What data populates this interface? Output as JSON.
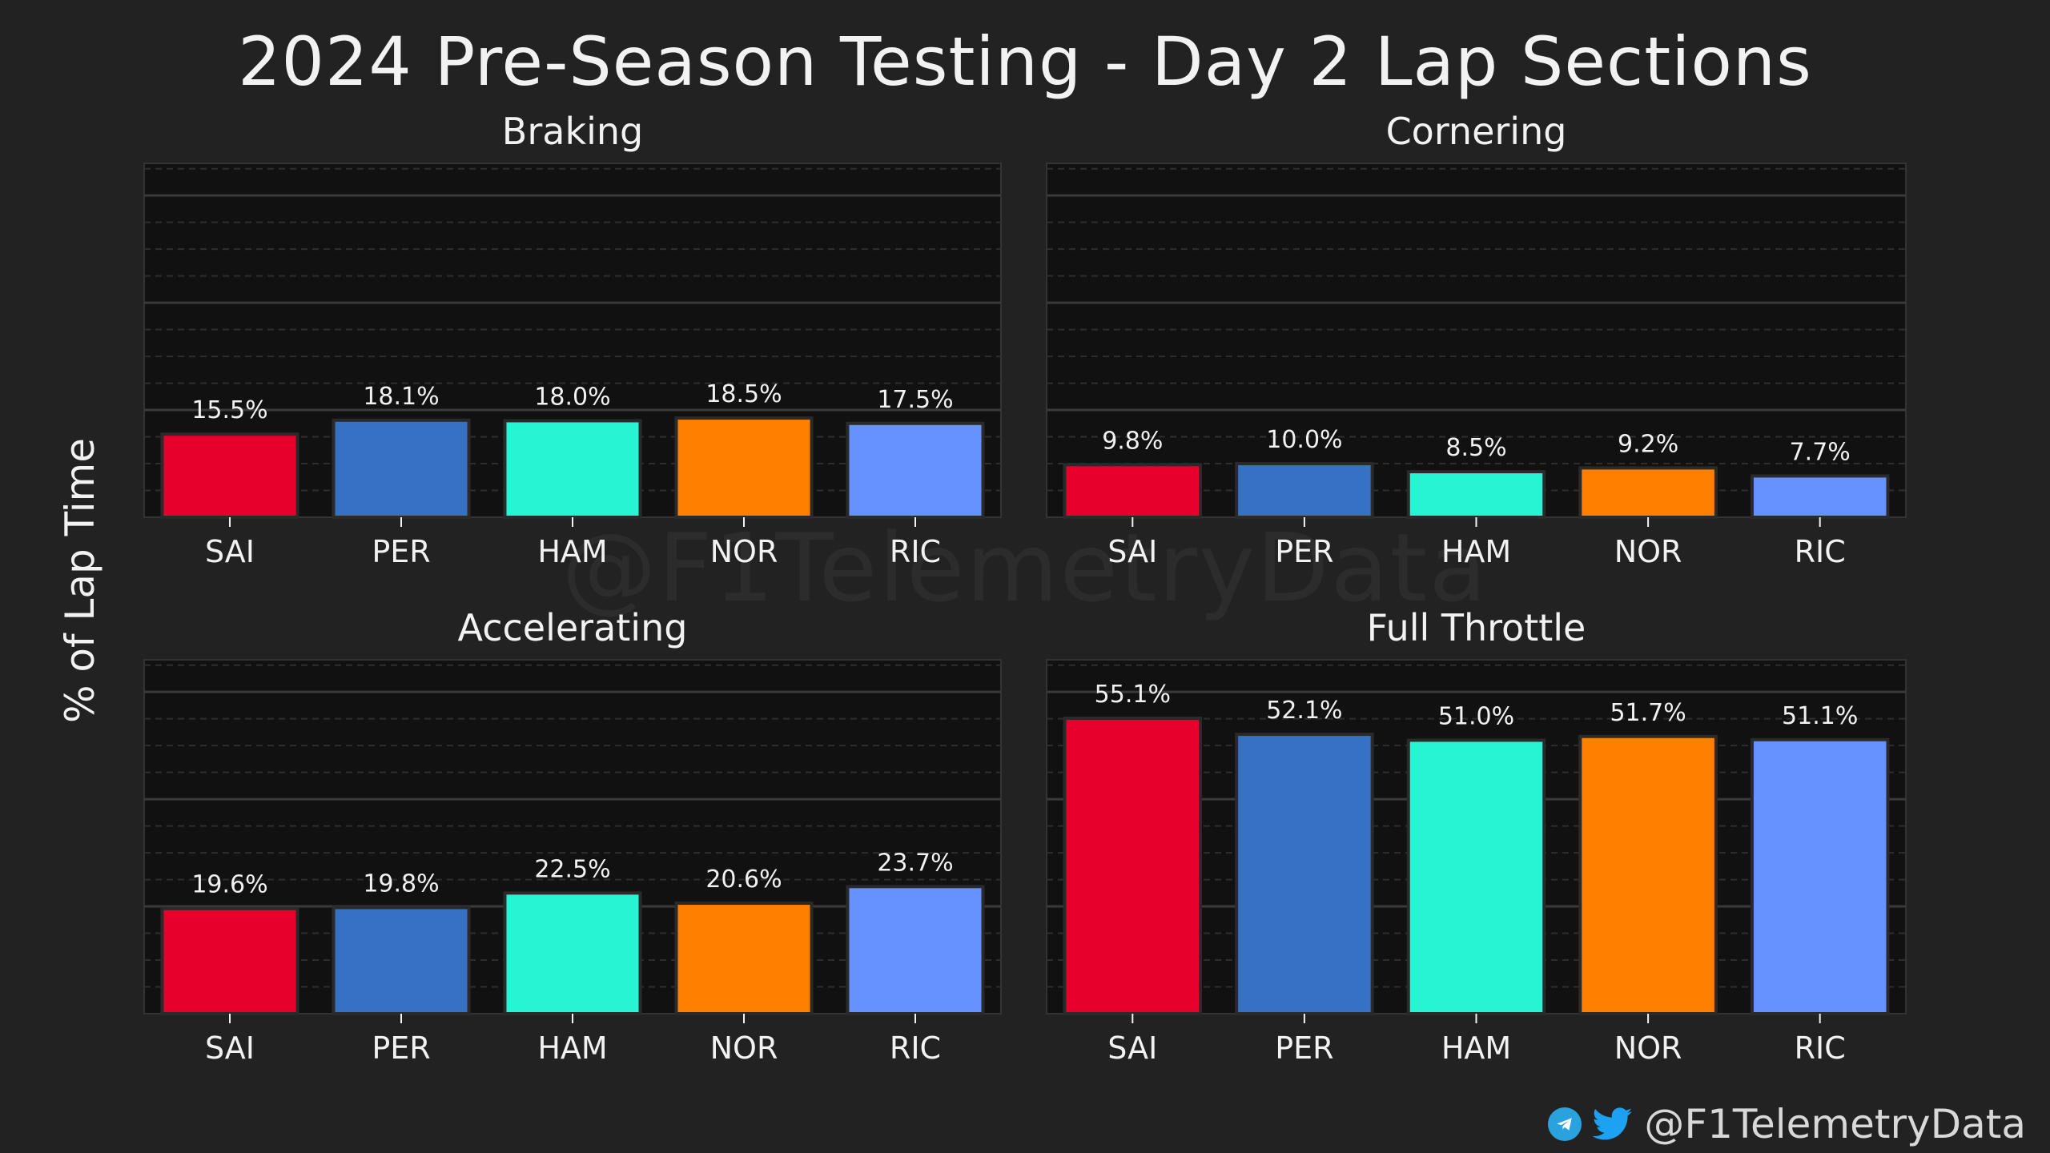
{
  "title": "2024 Pre-Season Testing - Day 2 Lap Sections",
  "ylabel": "% of Lap Time",
  "watermark": "@F1TelemetryData",
  "footer": {
    "handle": "@F1TelemetryData",
    "icons": [
      "telegram-icon",
      "twitter-icon"
    ]
  },
  "colors": {
    "background": "#222222",
    "plot_background": "#111111",
    "SAI": "#e8002d",
    "PER": "#3671c6",
    "HAM": "#27f4d2",
    "NOR": "#ff8000",
    "RIC": "#6692ff"
  },
  "chart_data": [
    {
      "type": "bar",
      "title": "Braking",
      "categories": [
        "SAI",
        "PER",
        "HAM",
        "NOR",
        "RIC"
      ],
      "values": [
        15.5,
        18.1,
        18.0,
        18.5,
        17.5
      ],
      "labels": [
        "15.5%",
        "18.1%",
        "18.0%",
        "18.5%",
        "17.5%"
      ],
      "ylim": [
        0,
        66
      ],
      "grid": true
    },
    {
      "type": "bar",
      "title": "Cornering",
      "categories": [
        "SAI",
        "PER",
        "HAM",
        "NOR",
        "RIC"
      ],
      "values": [
        9.8,
        10.0,
        8.5,
        9.2,
        7.7
      ],
      "labels": [
        "9.8%",
        "10.0%",
        "8.5%",
        "9.2%",
        "7.7%"
      ],
      "ylim": [
        0,
        66
      ],
      "grid": true
    },
    {
      "type": "bar",
      "title": "Accelerating",
      "categories": [
        "SAI",
        "PER",
        "HAM",
        "NOR",
        "RIC"
      ],
      "values": [
        19.6,
        19.8,
        22.5,
        20.6,
        23.7
      ],
      "labels": [
        "19.6%",
        "19.8%",
        "22.5%",
        "20.6%",
        "23.7%"
      ],
      "ylim": [
        0,
        66
      ],
      "grid": true
    },
    {
      "type": "bar",
      "title": "Full Throttle",
      "categories": [
        "SAI",
        "PER",
        "HAM",
        "NOR",
        "RIC"
      ],
      "values": [
        55.1,
        52.1,
        51.0,
        51.7,
        51.1
      ],
      "labels": [
        "55.1%",
        "52.1%",
        "51.0%",
        "51.7%",
        "51.1%"
      ],
      "ylim": [
        0,
        66
      ],
      "grid": true
    }
  ]
}
